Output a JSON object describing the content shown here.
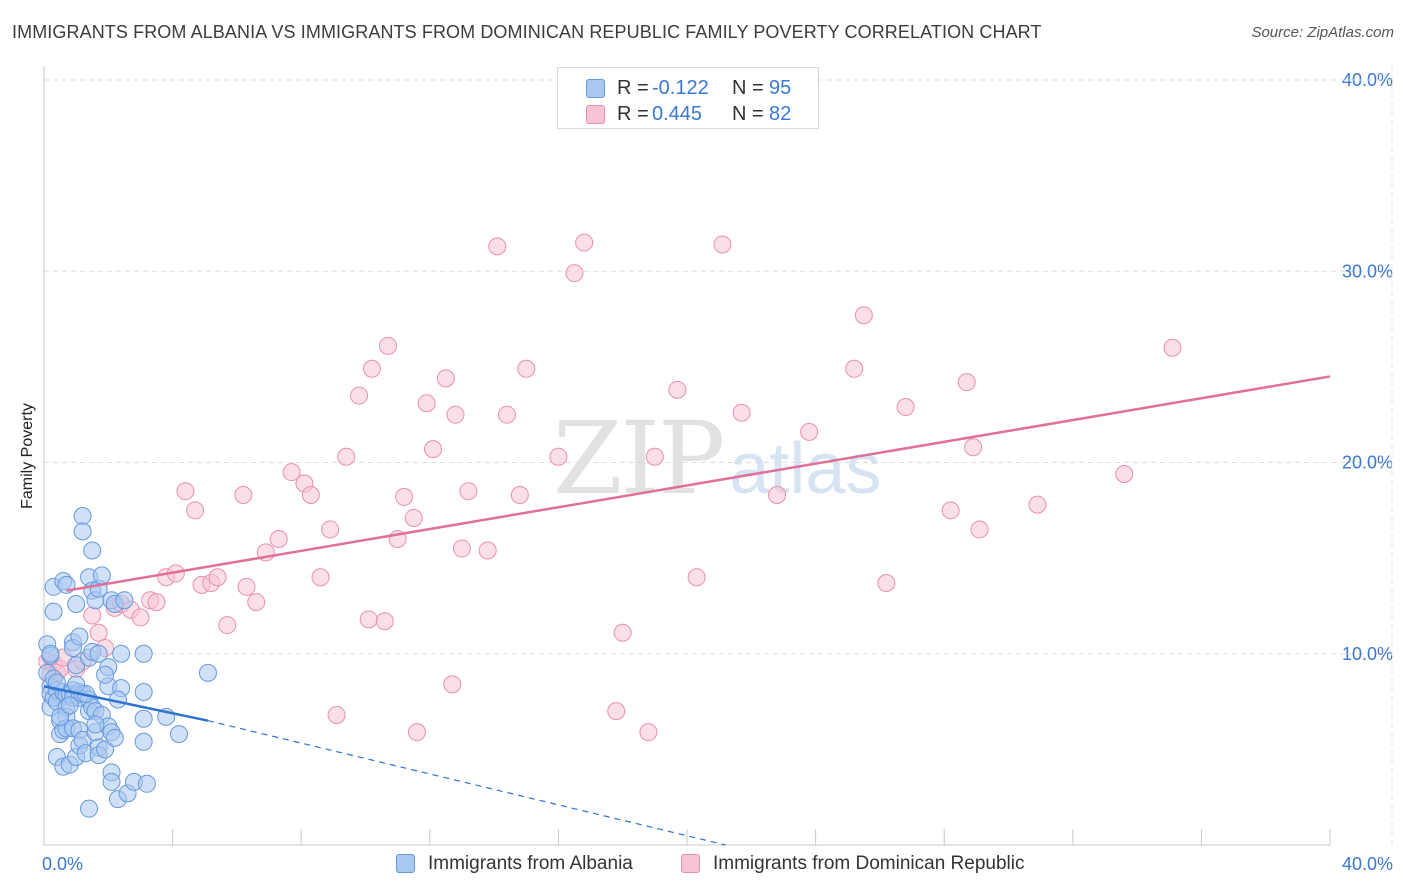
{
  "title": "IMMIGRANTS FROM ALBANIA VS IMMIGRANTS FROM DOMINICAN REPUBLIC FAMILY POVERTY CORRELATION CHART",
  "source": "Source: ZipAtlas.com",
  "watermark": {
    "zip": "ZIP",
    "atlas": "atlas"
  },
  "colors": {
    "albania_fill": "#a9c8f0",
    "albania_stroke": "#6699dd",
    "albania_line": "#2f72cf",
    "dominican_fill": "#f8c4d4",
    "dominican_stroke": "#e890ad",
    "dominican_line": "#e0709a",
    "tick_label": "#3b78d1",
    "grid": "#dddddd"
  },
  "legend": {
    "rows": [
      {
        "r_label": "R =",
        "r_value": "-0.122",
        "n_label": "N =",
        "n_value": "95"
      },
      {
        "r_label": "R =",
        "r_value": "0.445",
        "n_label": "N =",
        "n_value": "82"
      }
    ]
  },
  "chart_data": {
    "type": "scatter",
    "title": "IMMIGRANTS FROM ALBANIA VS IMMIGRANTS FROM DOMINICAN REPUBLIC FAMILY POVERTY CORRELATION CHART",
    "xlabel": "",
    "ylabel": "Family Poverty",
    "xlim": [
      0,
      40
    ],
    "ylim": [
      0,
      40
    ],
    "x_tick_labels": {
      "min": "0.0%",
      "max": "40.0%"
    },
    "y_ticks": [
      10,
      20,
      30,
      40
    ],
    "y_tick_labels": [
      "10.0%",
      "20.0%",
      "30.0%",
      "40.0%"
    ],
    "grid": true,
    "legend_position": "top-center",
    "series": [
      {
        "name": "Immigrants from Albania",
        "r": -0.122,
        "n": 95,
        "trend": {
          "solid": [
            [
              0,
              8.3
            ],
            [
              5.1,
              6.5
            ]
          ],
          "dashed": [
            [
              5.1,
              6.5
            ],
            [
              21.2,
              0
            ]
          ]
        },
        "points": [
          [
            0.1,
            10.5
          ],
          [
            0.1,
            9.0
          ],
          [
            0.2,
            8.3
          ],
          [
            0.2,
            7.9
          ],
          [
            0.2,
            7.2
          ],
          [
            0.2,
            9.9
          ],
          [
            0.3,
            12.2
          ],
          [
            0.3,
            13.5
          ],
          [
            0.3,
            8.7
          ],
          [
            0.3,
            7.7
          ],
          [
            0.4,
            8.1
          ],
          [
            0.4,
            7.5
          ],
          [
            0.4,
            4.6
          ],
          [
            0.5,
            6.5
          ],
          [
            0.5,
            5.8
          ],
          [
            0.6,
            13.8
          ],
          [
            0.6,
            8.0
          ],
          [
            0.6,
            6.0
          ],
          [
            0.6,
            4.1
          ],
          [
            0.7,
            13.6
          ],
          [
            0.7,
            7.8
          ],
          [
            0.7,
            7.2
          ],
          [
            0.7,
            6.7
          ],
          [
            0.7,
            6.1
          ],
          [
            0.8,
            7.9
          ],
          [
            0.8,
            4.2
          ],
          [
            0.9,
            10.6
          ],
          [
            0.9,
            10.3
          ],
          [
            0.9,
            8.1
          ],
          [
            0.9,
            7.7
          ],
          [
            0.9,
            6.1
          ],
          [
            1.0,
            12.6
          ],
          [
            1.0,
            9.4
          ],
          [
            1.0,
            4.6
          ],
          [
            1.1,
            10.9
          ],
          [
            1.1,
            8.0
          ],
          [
            1.1,
            7.7
          ],
          [
            1.1,
            6.0
          ],
          [
            1.1,
            5.2
          ],
          [
            1.2,
            17.2
          ],
          [
            1.2,
            16.4
          ],
          [
            1.2,
            7.9
          ],
          [
            1.2,
            5.5
          ],
          [
            1.3,
            4.8
          ],
          [
            1.4,
            14.0
          ],
          [
            1.4,
            9.8
          ],
          [
            1.4,
            7.6
          ],
          [
            1.4,
            7.0
          ],
          [
            1.4,
            1.9
          ],
          [
            1.5,
            15.4
          ],
          [
            1.5,
            13.3
          ],
          [
            1.5,
            10.1
          ],
          [
            1.5,
            7.2
          ],
          [
            1.6,
            12.8
          ],
          [
            1.6,
            7.0
          ],
          [
            1.6,
            5.9
          ],
          [
            1.7,
            13.4
          ],
          [
            1.7,
            10.0
          ],
          [
            1.7,
            5.1
          ],
          [
            1.7,
            4.7
          ],
          [
            1.8,
            14.1
          ],
          [
            1.8,
            6.8
          ],
          [
            1.9,
            5.0
          ],
          [
            2.0,
            9.3
          ],
          [
            2.0,
            8.3
          ],
          [
            2.0,
            6.2
          ],
          [
            2.1,
            12.8
          ],
          [
            2.1,
            5.9
          ],
          [
            2.1,
            3.8
          ],
          [
            2.1,
            3.3
          ],
          [
            2.2,
            12.6
          ],
          [
            2.2,
            5.6
          ],
          [
            2.3,
            2.4
          ],
          [
            2.4,
            10.0
          ],
          [
            2.4,
            8.2
          ],
          [
            2.5,
            12.8
          ],
          [
            2.6,
            2.7
          ],
          [
            2.8,
            3.3
          ],
          [
            3.1,
            10.0
          ],
          [
            3.1,
            8.0
          ],
          [
            3.1,
            6.6
          ],
          [
            3.1,
            5.4
          ],
          [
            3.2,
            3.2
          ],
          [
            3.8,
            6.7
          ],
          [
            4.2,
            5.8
          ],
          [
            5.1,
            9.0
          ],
          [
            0.4,
            8.5
          ],
          [
            0.5,
            6.7
          ],
          [
            0.8,
            7.3
          ],
          [
            1.3,
            7.9
          ],
          [
            1.6,
            6.3
          ],
          [
            1.9,
            8.9
          ],
          [
            2.3,
            7.6
          ],
          [
            0.2,
            10.0
          ],
          [
            1.0,
            8.4
          ]
        ]
      },
      {
        "name": "Immigrants from Dominican Republic",
        "r": 0.445,
        "n": 82,
        "trend": {
          "solid": [
            [
              0.7,
              13.3
            ],
            [
              40,
              24.5
            ]
          ]
        },
        "points": [
          [
            0.1,
            9.6
          ],
          [
            0.2,
            8.9
          ],
          [
            0.3,
            9.5
          ],
          [
            0.4,
            9.0
          ],
          [
            0.5,
            9.2
          ],
          [
            0.6,
            9.8
          ],
          [
            1.0,
            9.2
          ],
          [
            1.2,
            9.6
          ],
          [
            1.5,
            12.0
          ],
          [
            1.7,
            11.1
          ],
          [
            1.9,
            10.3
          ],
          [
            2.2,
            12.4
          ],
          [
            2.4,
            12.6
          ],
          [
            2.7,
            12.3
          ],
          [
            3.0,
            11.9
          ],
          [
            3.3,
            12.8
          ],
          [
            3.5,
            12.7
          ],
          [
            3.8,
            14.0
          ],
          [
            4.1,
            14.2
          ],
          [
            4.4,
            18.5
          ],
          [
            4.7,
            17.5
          ],
          [
            4.9,
            13.6
          ],
          [
            5.2,
            13.7
          ],
          [
            5.4,
            14.0
          ],
          [
            5.7,
            11.5
          ],
          [
            6.2,
            18.3
          ],
          [
            6.3,
            13.5
          ],
          [
            6.6,
            12.7
          ],
          [
            6.9,
            15.3
          ],
          [
            7.3,
            16.0
          ],
          [
            7.7,
            19.5
          ],
          [
            8.1,
            18.9
          ],
          [
            8.3,
            18.3
          ],
          [
            8.6,
            14.0
          ],
          [
            8.9,
            16.5
          ],
          [
            9.1,
            6.8
          ],
          [
            9.4,
            20.3
          ],
          [
            9.8,
            23.5
          ],
          [
            10.1,
            11.8
          ],
          [
            10.2,
            24.9
          ],
          [
            10.6,
            11.7
          ],
          [
            10.7,
            26.1
          ],
          [
            11.0,
            16.0
          ],
          [
            11.2,
            18.2
          ],
          [
            11.5,
            17.1
          ],
          [
            11.6,
            5.9
          ],
          [
            11.9,
            23.1
          ],
          [
            12.1,
            20.7
          ],
          [
            12.5,
            24.4
          ],
          [
            12.7,
            8.4
          ],
          [
            12.8,
            22.5
          ],
          [
            13.0,
            15.5
          ],
          [
            13.2,
            18.5
          ],
          [
            13.8,
            15.4
          ],
          [
            14.1,
            31.3
          ],
          [
            14.4,
            22.5
          ],
          [
            14.8,
            18.3
          ],
          [
            15.0,
            24.9
          ],
          [
            16.0,
            20.3
          ],
          [
            16.5,
            29.9
          ],
          [
            16.8,
            31.5
          ],
          [
            17.8,
            7.0
          ],
          [
            18.0,
            11.1
          ],
          [
            18.8,
            5.9
          ],
          [
            19.0,
            20.3
          ],
          [
            19.7,
            23.8
          ],
          [
            20.3,
            14.0
          ],
          [
            21.1,
            31.4
          ],
          [
            21.7,
            22.6
          ],
          [
            22.8,
            18.3
          ],
          [
            23.8,
            21.6
          ],
          [
            25.2,
            24.9
          ],
          [
            25.5,
            27.7
          ],
          [
            26.2,
            13.7
          ],
          [
            26.8,
            22.9
          ],
          [
            28.2,
            17.5
          ],
          [
            28.7,
            24.2
          ],
          [
            28.9,
            20.8
          ],
          [
            29.1,
            16.5
          ],
          [
            30.9,
            17.8
          ],
          [
            33.6,
            19.4
          ],
          [
            35.1,
            26.0
          ]
        ]
      }
    ]
  },
  "legend_bottom": [
    "Immigrants from Albania",
    "Immigrants from Dominican Republic"
  ]
}
